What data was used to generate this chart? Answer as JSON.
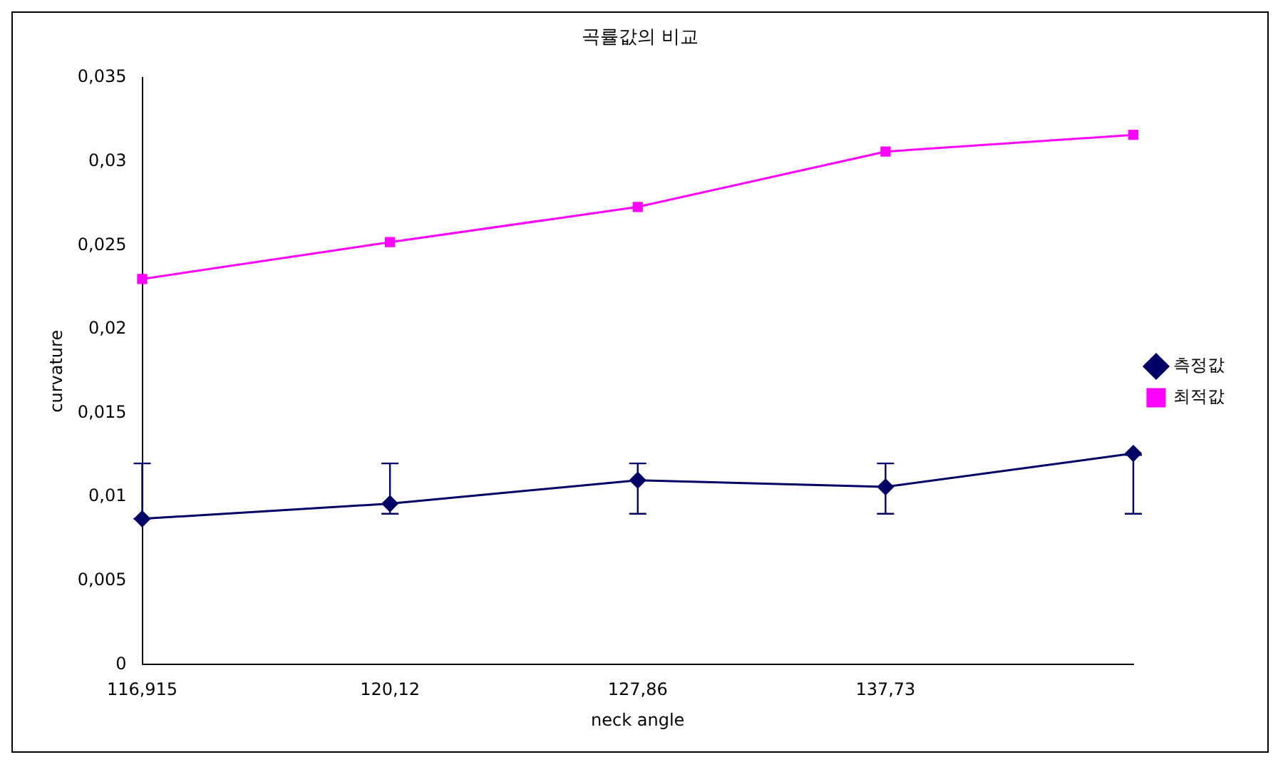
{
  "chart_data": {
    "type": "line",
    "title": "곡률값의 비교",
    "xlabel": "neck angle",
    "ylabel": "curvature",
    "categories": [
      "116,915",
      "120,12",
      "127,86",
      "137,73",
      null
    ],
    "series": [
      {
        "name": "측정값",
        "color": "#000066",
        "marker": "diamond",
        "values": [
          0.0087,
          0.0096,
          0.011,
          0.0106,
          0.0126
        ],
        "errors": [
          [
            0.0087,
            0.012
          ],
          [
            0.009,
            0.012
          ],
          [
            0.009,
            0.012
          ],
          [
            0.009,
            0.012
          ],
          [
            0.009,
            0.0125
          ]
        ]
      },
      {
        "name": "최적값",
        "color": "#ff00ff",
        "marker": "square",
        "values": [
          0.023,
          0.0252,
          0.0273,
          0.0306,
          0.0316
        ]
      }
    ],
    "ylim": [
      0,
      0.035
    ],
    "yticks": [
      0,
      {
        "value": 0.005,
        "label": "0,005"
      },
      {
        "value": 0.01,
        "label": "0,01"
      },
      {
        "value": 0.015,
        "label": "0,015"
      },
      {
        "value": 0.02,
        "label": "0,02"
      },
      {
        "value": 0.025,
        "label": "0,025"
      },
      {
        "value": 0.03,
        "label": "0,03"
      },
      {
        "value": 0.035,
        "label": "0,035"
      }
    ],
    "grid": false,
    "legend": "right",
    "line_style": "solid"
  }
}
